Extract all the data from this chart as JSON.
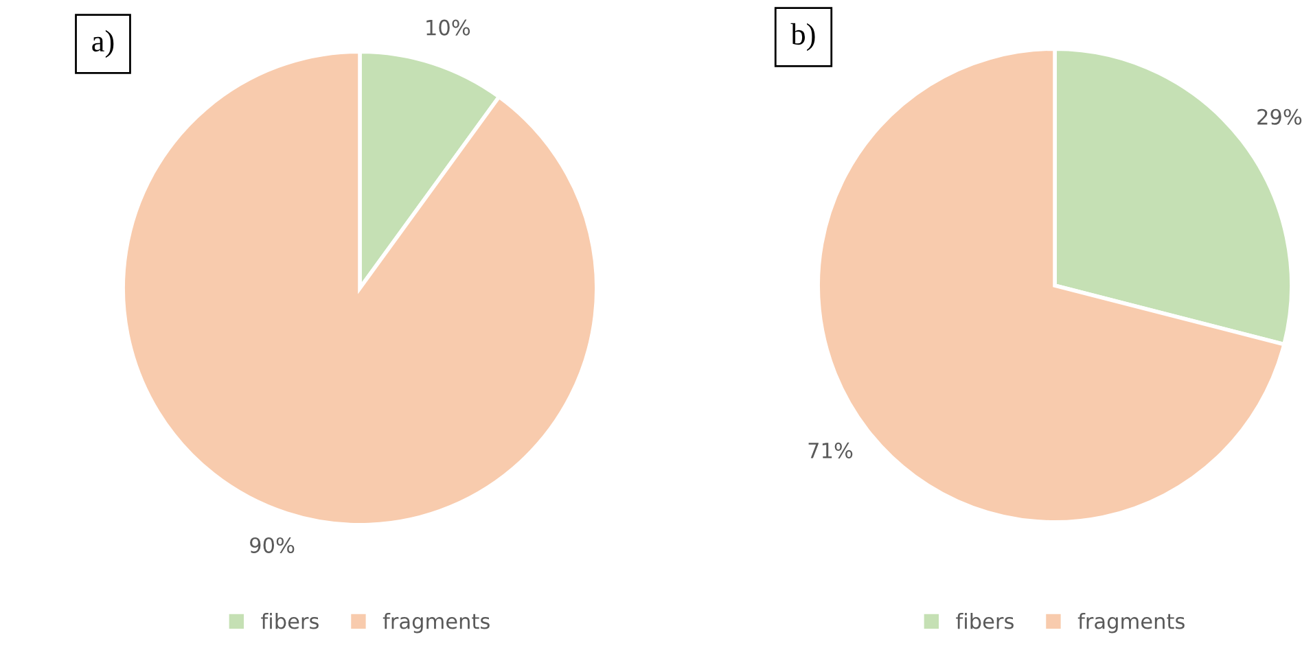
{
  "chart_data": [
    {
      "type": "pie",
      "title": "a)",
      "categories": [
        "fibers",
        "fragments"
      ],
      "values": [
        10,
        90
      ],
      "colors": [
        "#c5e0b4",
        "#f8cbad"
      ],
      "value_labels": [
        "10%",
        "90%"
      ],
      "legend": "bottom"
    },
    {
      "type": "pie",
      "title": "b)",
      "categories": [
        "fibers",
        "fragments"
      ],
      "values": [
        29,
        71
      ],
      "colors": [
        "#c5e0b4",
        "#f8cbad"
      ],
      "value_labels": [
        "29%",
        "71%"
      ],
      "legend": "bottom"
    }
  ]
}
